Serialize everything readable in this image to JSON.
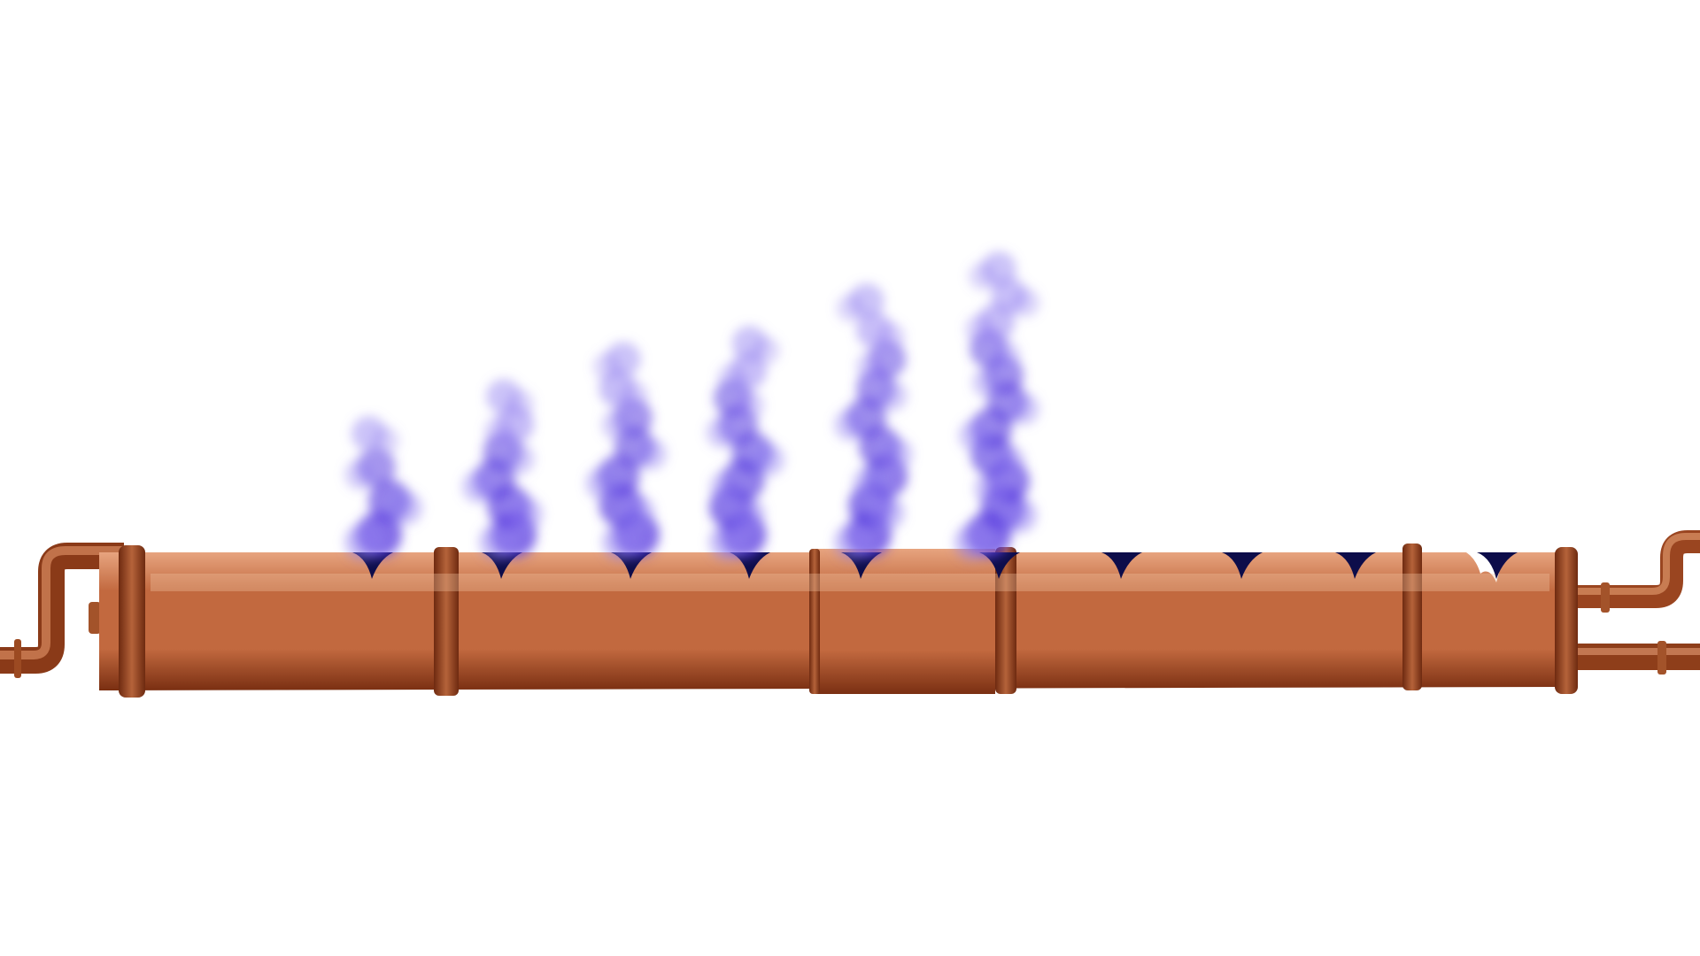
{
  "scene": {
    "background_color": "#ffffff",
    "pipe": {
      "material": "copper",
      "colors": {
        "highlight": "#e7a47f",
        "mid": "#c2693f",
        "shadow": "#7a2f12",
        "band": "#b5633a",
        "band_dark": "#6e2a10"
      },
      "segments": 5,
      "holes": 11
    },
    "smoke": {
      "color": "#5b3fe0",
      "light_color": "#8f7cf0",
      "plumes": [
        {
          "hole": 1,
          "level": 0.38
        },
        {
          "hole": 2,
          "level": 0.52
        },
        {
          "hole": 3,
          "level": 0.66
        },
        {
          "hole": 4,
          "level": 0.72
        },
        {
          "hole": 5,
          "level": 0.88
        },
        {
          "hole": 6,
          "level": 1.0
        }
      ]
    },
    "hole_color": "#0d0d4a"
  }
}
